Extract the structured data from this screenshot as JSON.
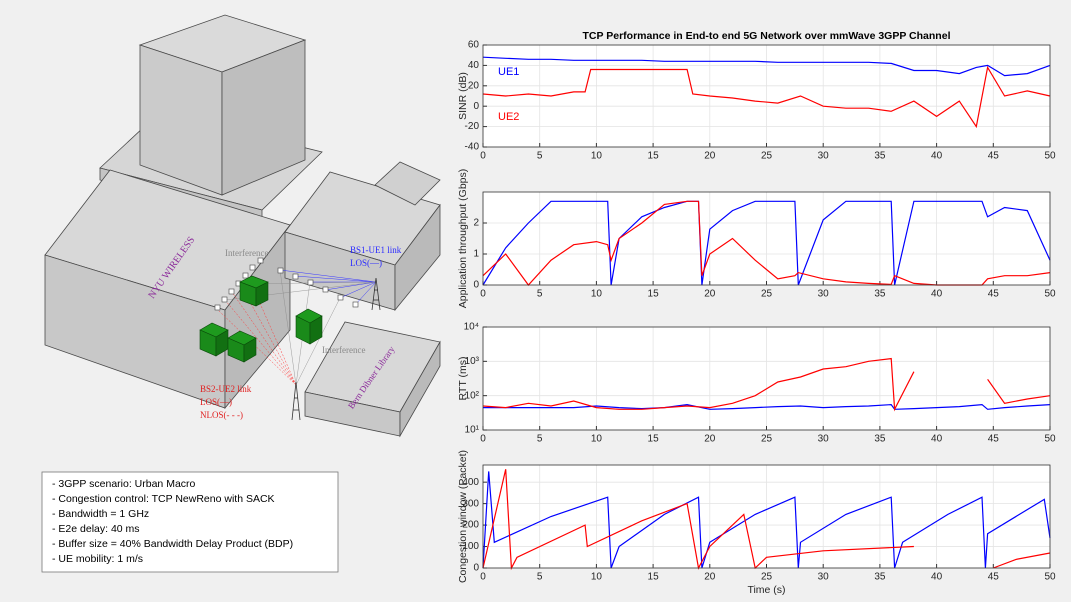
{
  "chart_data": [
    {
      "type": "line",
      "title": "TCP Performance in End-to end 5G Network over mmWave 3GPP Channel",
      "y_label": "SINR (dB)",
      "xlim": [
        0,
        50
      ],
      "xticks": [
        0,
        5,
        10,
        15,
        20,
        25,
        30,
        35,
        40,
        45,
        50
      ],
      "ylim": [
        -40,
        60
      ],
      "yticks": [
        -40,
        -20,
        0,
        20,
        40,
        60
      ],
      "grid": true,
      "series": [
        {
          "name": "UE1",
          "color": "#0000ff",
          "x": [
            0,
            2,
            4,
            6,
            8,
            9,
            9.5,
            12,
            14,
            16,
            18,
            18.5,
            20,
            22,
            24,
            26,
            28,
            30,
            32,
            34,
            36,
            38,
            40,
            42,
            43.5,
            44.5,
            46,
            48,
            50
          ],
          "values": [
            48,
            47,
            46,
            46,
            45,
            45,
            45,
            45,
            45,
            44,
            44,
            44,
            44,
            44,
            44,
            43,
            43,
            43,
            43,
            43,
            42,
            35,
            35,
            32,
            38,
            40,
            30,
            32,
            40
          ]
        },
        {
          "name": "UE2",
          "color": "#ff0000",
          "x": [
            0,
            2,
            4,
            6,
            8,
            9,
            9.5,
            12,
            14,
            16,
            18,
            18.5,
            20,
            22,
            24,
            26,
            28,
            30,
            32,
            34,
            36,
            38,
            40,
            42,
            43.5,
            44.5,
            46,
            48,
            50
          ],
          "values": [
            12,
            10,
            12,
            10,
            14,
            14,
            36,
            36,
            36,
            36,
            36,
            12,
            10,
            8,
            5,
            3,
            10,
            0,
            -2,
            -2,
            -5,
            5,
            -10,
            5,
            -20,
            38,
            10,
            15,
            10
          ]
        }
      ]
    },
    {
      "type": "line",
      "y_label": "Application throughput (Gbps)",
      "xlim": [
        0,
        50
      ],
      "xticks": [
        0,
        5,
        10,
        15,
        20,
        25,
        30,
        35,
        40,
        45,
        50
      ],
      "ylim": [
        0,
        3
      ],
      "yticks": [
        0,
        1,
        2
      ],
      "grid": true,
      "series": [
        {
          "name": "UE1",
          "color": "#0000ff",
          "x": [
            0,
            2,
            4,
            6,
            8,
            10,
            11,
            11.3,
            12,
            14,
            16,
            18,
            19,
            19.3,
            20,
            22,
            24,
            26,
            27.5,
            27.8,
            30,
            32,
            34,
            36,
            36.3,
            38,
            40,
            42,
            44,
            44.5,
            46,
            48,
            50
          ],
          "values": [
            0,
            1.2,
            2.0,
            2.7,
            2.7,
            2.7,
            2.7,
            0,
            1.5,
            2.2,
            2.5,
            2.7,
            2.7,
            0,
            1.8,
            2.4,
            2.7,
            2.7,
            2.7,
            0,
            2.1,
            2.7,
            2.7,
            2.7,
            0,
            2.7,
            2.7,
            2.7,
            2.7,
            2.2,
            2.5,
            2.4,
            0.8
          ]
        },
        {
          "name": "UE2",
          "color": "#ff0000",
          "x": [
            0,
            2,
            4,
            6,
            8,
            10,
            11,
            11.3,
            12,
            14,
            16,
            18,
            19,
            19.3,
            20,
            22,
            24,
            26,
            27.5,
            27.8,
            30,
            32,
            34,
            36,
            36.3,
            38,
            40,
            42,
            44,
            44.5,
            46,
            48,
            50
          ],
          "values": [
            0.3,
            1.0,
            0,
            0.8,
            1.3,
            1.4,
            1.3,
            0.8,
            1.5,
            2.0,
            2.6,
            2.7,
            2.7,
            0.3,
            1.0,
            1.5,
            0.8,
            0.2,
            0.3,
            0.4,
            0.2,
            0.1,
            0.05,
            0.02,
            0.3,
            0.05,
            0,
            0,
            0,
            0.2,
            0.3,
            0.3,
            0.4
          ]
        }
      ]
    },
    {
      "type": "line",
      "y_label": "RTT (ms)",
      "log_scale": true,
      "xlim": [
        0,
        50
      ],
      "xticks": [
        0,
        5,
        10,
        15,
        20,
        25,
        30,
        35,
        40,
        45,
        50
      ],
      "ylim": [
        10,
        10000
      ],
      "yticks": [
        {
          "value": 10,
          "label": "10¹"
        },
        {
          "value": 100,
          "label": "10²"
        },
        {
          "value": 1000,
          "label": "10³"
        },
        {
          "value": 10000,
          "label": "10⁴"
        }
      ],
      "grid": true,
      "series": [
        {
          "name": "UE1",
          "color": "#0000ff",
          "x": [
            0,
            2,
            4,
            6,
            8,
            10,
            12,
            14,
            16,
            18,
            20,
            22,
            24,
            26,
            28,
            30,
            32,
            34,
            36,
            36.3,
            38,
            40,
            42,
            44,
            44.5,
            46,
            48,
            50
          ],
          "values": [
            45,
            45,
            45,
            45,
            45,
            50,
            45,
            42,
            45,
            55,
            40,
            42,
            45,
            48,
            50,
            45,
            48,
            50,
            55,
            40,
            42,
            45,
            48,
            55,
            40,
            45,
            50,
            55
          ]
        },
        {
          "name": "UE2",
          "color": "#ff0000",
          "x": [
            0,
            2,
            4,
            6,
            8,
            10,
            12,
            14,
            16,
            18,
            20,
            22,
            24,
            26,
            28,
            30,
            32,
            34,
            36,
            36.3,
            38,
            40,
            42,
            44,
            44.5,
            46,
            48,
            50
          ],
          "values": [
            50,
            45,
            60,
            50,
            70,
            45,
            40,
            40,
            45,
            50,
            45,
            60,
            100,
            250,
            350,
            600,
            700,
            1000,
            1200,
            40,
            500,
            null,
            null,
            null,
            300,
            60,
            80,
            100
          ]
        }
      ]
    },
    {
      "type": "line",
      "y_label": "Congestion window (Packet)",
      "x_label": "Time (s)",
      "xlim": [
        0,
        50
      ],
      "xticks": [
        0,
        5,
        10,
        15,
        20,
        25,
        30,
        35,
        40,
        45,
        50
      ],
      "ylim": [
        0,
        480
      ],
      "yticks": [
        0,
        100,
        200,
        300,
        400
      ],
      "grid": true,
      "series": [
        {
          "name": "UE1",
          "color": "#0000ff",
          "x": [
            0,
            0.5,
            1,
            6,
            11,
            11.3,
            12,
            16,
            19,
            19.3,
            20,
            24,
            27.5,
            27.8,
            28,
            32,
            36,
            36.3,
            37,
            41,
            44,
            44.3,
            44.5,
            49.5,
            50
          ],
          "values": [
            0,
            450,
            120,
            240,
            330,
            0,
            100,
            250,
            330,
            0,
            120,
            250,
            330,
            0,
            120,
            250,
            330,
            0,
            120,
            250,
            330,
            0,
            160,
            320,
            140
          ]
        },
        {
          "name": "UE2",
          "color": "#ff0000",
          "x": [
            0,
            2,
            2.5,
            3,
            9,
            9.2,
            14,
            18,
            19,
            20,
            23,
            24,
            25,
            30,
            38,
            40,
            45,
            47,
            50
          ],
          "values": [
            0,
            460,
            0,
            50,
            200,
            100,
            220,
            300,
            0,
            100,
            250,
            0,
            50,
            80,
            100,
            null,
            0,
            40,
            70
          ]
        }
      ]
    }
  ],
  "scene": {
    "building_label": "NYU WIRELESS",
    "library_label": "Bern Dibner Library",
    "interference_labels": [
      "Interference",
      "Interference"
    ],
    "bs1_link": [
      "BS1-UE1 link",
      "LOS(—)"
    ],
    "bs2_link": [
      "BS2-UE2 link",
      "LOS(—)",
      "NLOS(- - -)"
    ]
  },
  "notes": [
    "- 3GPP scenario: Urban Macro",
    "- Congestion control: TCP NewReno with SACK",
    "- Bandwidth = 1 GHz",
    "- E2e delay: 40 ms",
    "- Buffer size = 40% Bandwidth Delay Product (BDP)",
    "- UE mobility: 1 m/s"
  ]
}
